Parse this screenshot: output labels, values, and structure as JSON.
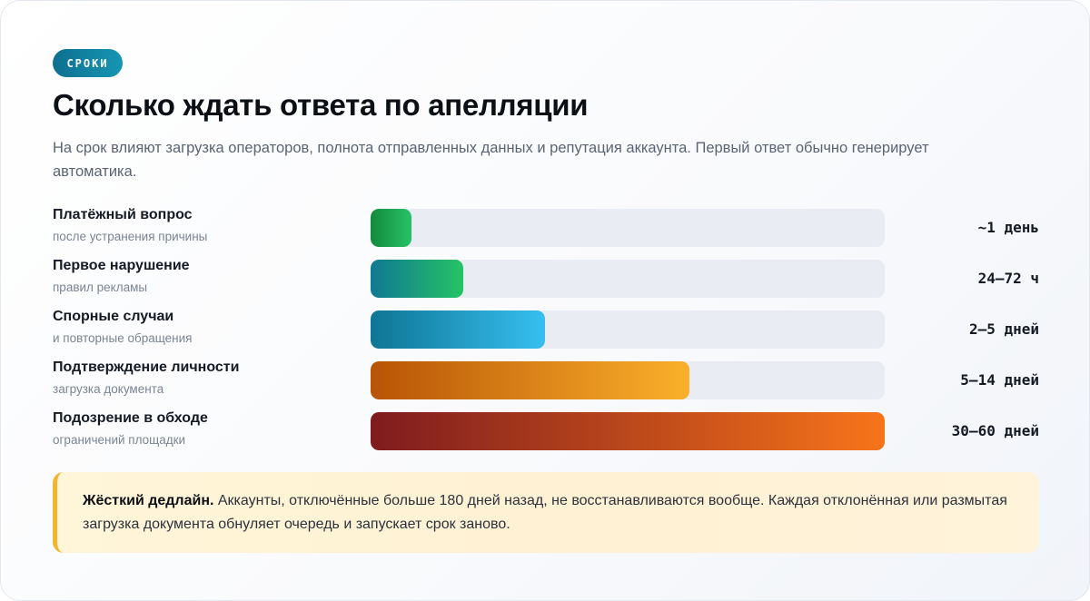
{
  "badge": "СРОКИ",
  "title": "Сколько ждать ответа по апелляции",
  "subtitle": "На срок влияют загрузка операторов, полнота отправленных данных и репутация аккаунта. Первый ответ обычно генерирует автоматика.",
  "rows": [
    {
      "label": "Платёжный вопрос",
      "sub": "после устранения причины",
      "value": "~1 день",
      "fill_fraction": 0.08,
      "gradient": [
        "#138a3c",
        "#27c267"
      ]
    },
    {
      "label": "Первое нарушение",
      "sub": "правил рекламы",
      "value": "24–72 ч",
      "fill_fraction": 0.18,
      "gradient": [
        "#0f7893",
        "#26c365"
      ]
    },
    {
      "label": "Спорные случаи",
      "sub": "и повторные обращения",
      "value": "2–5 дней",
      "fill_fraction": 0.34,
      "gradient": [
        "#0f7594",
        "#36bff0"
      ]
    },
    {
      "label": "Подтверждение личности",
      "sub": "загрузка документа",
      "value": "5–14 дней",
      "fill_fraction": 0.62,
      "gradient": [
        "#b85406",
        "#fab02a"
      ]
    },
    {
      "label": "Подозрение в обходе",
      "sub": "ограничений площадки",
      "value": "30–60 дней",
      "fill_fraction": 1.0,
      "gradient": [
        "#7e1b1e",
        "#f77419"
      ]
    }
  ],
  "note": {
    "bold": "Жёсткий дедлайн.",
    "text": " Аккаунты, отключённые больше 180 дней назад, не восстанавливаются вообще. Каждая отклонённая или размытая загрузка документа обнуляет очередь и запускает срок заново."
  },
  "colors": {
    "badge": "#1185a4",
    "track": "#e9ecf2",
    "note_accent": "#f5b52a",
    "note_bg": "#fff4d9"
  }
}
